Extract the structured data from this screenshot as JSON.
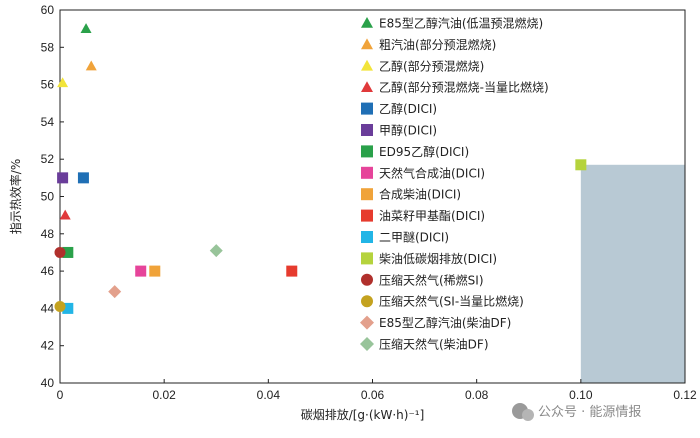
{
  "chart_data": {
    "type": "scatter",
    "xlabel": "碳烟排放/[g·(kW·h)⁻¹]",
    "ylabel": "指示热效率/%",
    "xlim": [
      0,
      0.12
    ],
    "ylim": [
      40,
      60
    ],
    "x_ticks": [
      "0",
      "0.02",
      "0.04",
      "0.06",
      "0.08",
      "0.10",
      "0.12"
    ],
    "y_ticks": [
      "40",
      "42",
      "44",
      "46",
      "48",
      "50",
      "52",
      "54",
      "56",
      "58",
      "60"
    ],
    "grid": false,
    "legend_position": "top-right",
    "shaded_region": {
      "x": [
        0.1,
        0.12
      ],
      "y": [
        40,
        51.7
      ],
      "color": "#b8c9d4"
    },
    "series": [
      {
        "name": "E85型乙醇汽油(低温预混燃烧)",
        "marker": "triangle",
        "color": "#2aa14a",
        "points": [
          [
            0.005,
            59
          ]
        ]
      },
      {
        "name": "粗汽油(部分预混燃烧)",
        "marker": "triangle",
        "color": "#f0a33a",
        "points": [
          [
            0.006,
            57
          ]
        ]
      },
      {
        "name": "乙醇(部分预混燃烧)",
        "marker": "triangle",
        "color": "#f2e43a",
        "points": [
          [
            0.0005,
            56.1
          ]
        ]
      },
      {
        "name": "乙醇(部分预混燃烧-当量比燃烧)",
        "marker": "triangle",
        "color": "#e0393b",
        "points": [
          [
            0.001,
            49
          ]
        ]
      },
      {
        "name": "乙醇(DICI)",
        "marker": "square",
        "color": "#1f6fb5",
        "points": [
          [
            0.0045,
            51
          ]
        ]
      },
      {
        "name": "甲醇(DICI)",
        "marker": "square",
        "color": "#6a3d9a",
        "points": [
          [
            0.0005,
            51
          ]
        ]
      },
      {
        "name": "ED95乙醇(DICI)",
        "marker": "square",
        "color": "#2aa14a",
        "points": [
          [
            0.0015,
            47
          ]
        ]
      },
      {
        "name": "天然气合成油(DICI)",
        "marker": "square",
        "color": "#e6449a",
        "points": [
          [
            0.0155,
            46
          ]
        ]
      },
      {
        "name": "合成柴油(DICI)",
        "marker": "square",
        "color": "#f0a33a",
        "points": [
          [
            0.0182,
            46
          ]
        ]
      },
      {
        "name": "油菜籽甲基酯(DICI)",
        "marker": "square",
        "color": "#e63b2e",
        "points": [
          [
            0.0445,
            46
          ]
        ]
      },
      {
        "name": "二甲醚(DICI)",
        "marker": "square",
        "color": "#22b5e6",
        "points": [
          [
            0.0015,
            44
          ]
        ]
      },
      {
        "name": "柴油低碳烟排放(DICI)",
        "marker": "square",
        "color": "#b5d33d",
        "points": [
          [
            0.1,
            51.7
          ]
        ]
      },
      {
        "name": "压缩天然气(稀燃SI)",
        "marker": "circle",
        "color": "#b0302c",
        "points": [
          [
            0,
            47
          ]
        ]
      },
      {
        "name": "压缩天然气(SI-当量比燃烧)",
        "marker": "circle",
        "color": "#c4a21f",
        "points": [
          [
            0,
            44.1
          ]
        ]
      },
      {
        "name": "E85型乙醇汽油(柴油DF)",
        "marker": "diamond",
        "color": "#e3a08c",
        "points": [
          [
            0.0105,
            44.9
          ]
        ]
      },
      {
        "name": "压缩天然气(柴油DF)",
        "marker": "diamond",
        "color": "#98c49a",
        "points": [
          [
            0.03,
            47.1
          ]
        ]
      }
    ]
  },
  "watermark": {
    "text": "公众号 · 能源情报"
  }
}
